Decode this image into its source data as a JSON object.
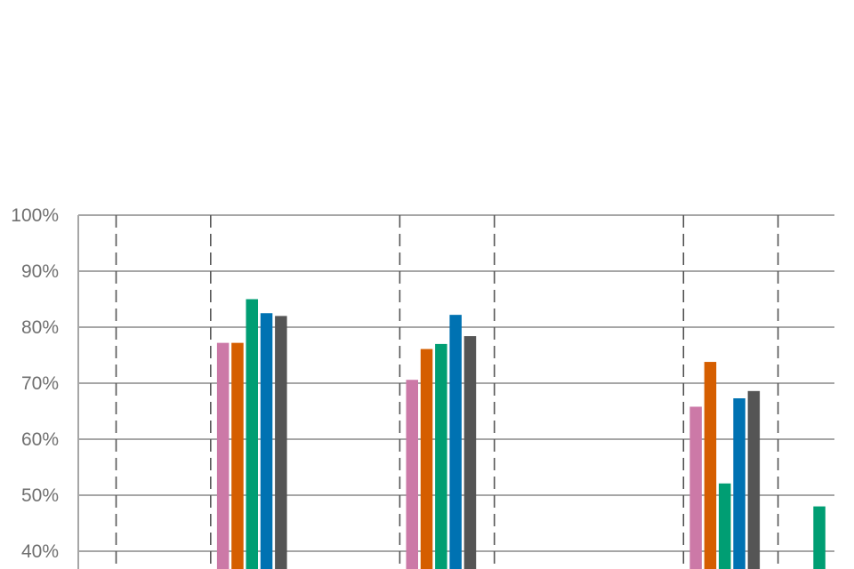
{
  "chart_data": {
    "type": "bar",
    "title": "",
    "xlabel": "",
    "ylabel": "",
    "ylim": [
      0.3,
      1.0
    ],
    "visible_y_range": [
      0.38,
      1.0
    ],
    "y_ticks": [
      {
        "value": 1.0,
        "label": "100%"
      },
      {
        "value": 0.9,
        "label": "90%"
      },
      {
        "value": 0.8,
        "label": "80%"
      },
      {
        "value": 0.7,
        "label": "70%"
      },
      {
        "value": 0.6,
        "label": "60%"
      },
      {
        "value": 0.5,
        "label": "50%"
      },
      {
        "value": 0.4,
        "label": "40%"
      }
    ],
    "grid": true,
    "dashed_separator_positions": [
      0.4,
      1.4,
      3.4,
      4.4,
      6.4,
      7.4
    ],
    "categories": [
      "",
      "",
      "",
      "",
      "",
      "",
      "",
      ""
    ],
    "series": [
      {
        "color": "#cc79a7",
        "values": [
          null,
          0.772,
          null,
          0.706,
          null,
          null,
          0.658,
          null
        ]
      },
      {
        "color": "#d55e00",
        "values": [
          null,
          0.772,
          null,
          0.761,
          null,
          null,
          0.738,
          null
        ]
      },
      {
        "color": "#009e73",
        "values": [
          null,
          0.85,
          null,
          0.77,
          null,
          null,
          0.521,
          0.48
        ]
      },
      {
        "color": "#0072b2",
        "values": [
          null,
          0.825,
          null,
          0.822,
          null,
          null,
          0.673,
          null
        ]
      },
      {
        "color": "#555555",
        "values": [
          null,
          0.82,
          null,
          0.784,
          null,
          null,
          0.686,
          null
        ]
      }
    ]
  }
}
